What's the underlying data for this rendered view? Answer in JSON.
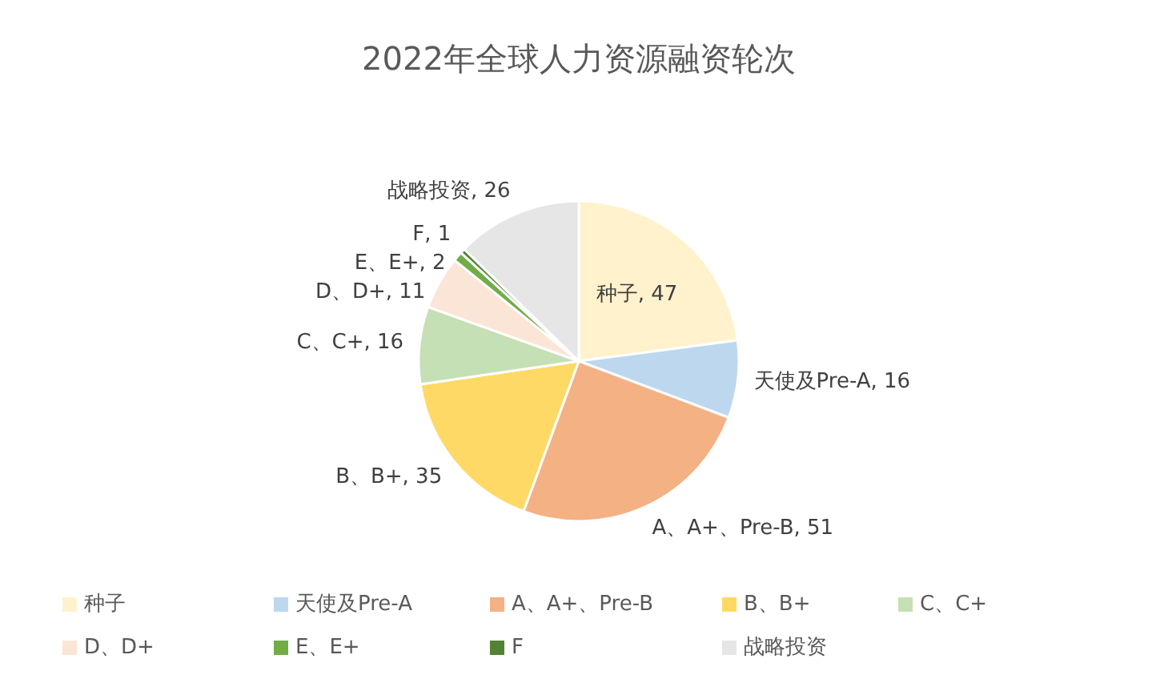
{
  "chart_data": {
    "type": "pie",
    "title": "2022年全球人力资源融资轮次",
    "categories": [
      "种子",
      "天使及Pre-A",
      "A、A+、Pre-B",
      "B、B+",
      "C、C+",
      "D、D+",
      "E、E+",
      "F",
      "战略投资"
    ],
    "values": [
      47,
      16,
      51,
      35,
      16,
      11,
      2,
      1,
      26
    ],
    "colors": [
      "#fff2cc",
      "#bdd7ee",
      "#f4b183",
      "#ffd966",
      "#c5e0b4",
      "#fbe5d6",
      "#70ad47",
      "#548235",
      "#e7e6e6"
    ],
    "value_labels": [
      "种子, 47",
      "天使及Pre-A, 16",
      "A、A+、Pre-B, 51",
      "B、B+, 35",
      "C、C+, 16",
      "D、D+, 11",
      "E、E+, 2",
      "F, 1",
      "战略投资, 26"
    ],
    "legend": "bottom"
  }
}
